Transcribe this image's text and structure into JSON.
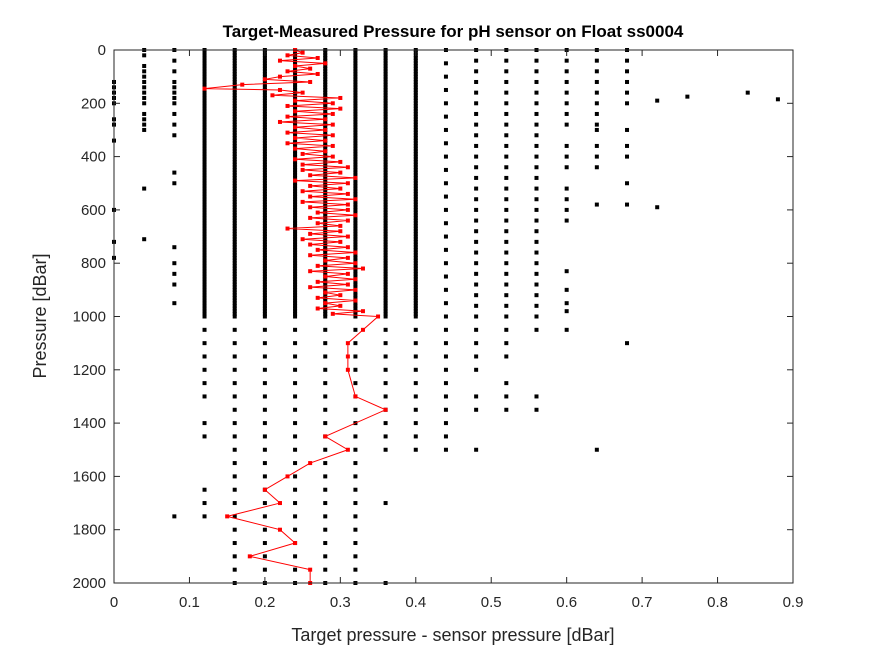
{
  "chart_data": {
    "type": "scatter",
    "title": "Target-Measured Pressure for pH sensor on Float ss0004",
    "xlabel": "Target pressure - sensor pressure [dBar]",
    "ylabel": "Pressure [dBar]",
    "xlim": [
      0,
      0.9
    ],
    "ylim": [
      0,
      2000
    ],
    "y_reversed": true,
    "grid": false,
    "x_ticks": [
      "0",
      "0.1",
      "0.2",
      "0.3",
      "0.4",
      "0.5",
      "0.6",
      "0.7",
      "0.8",
      "0.9"
    ],
    "y_ticks": [
      "0",
      "200",
      "400",
      "600",
      "800",
      "1000",
      "1200",
      "1400",
      "1600",
      "1800",
      "2000"
    ],
    "colors": {
      "scatter": "#000000",
      "line": "#ff0000"
    },
    "series": [
      {
        "type": "scatter",
        "dense_columns": [
          {
            "x": 0.12,
            "y_range": [
              0,
              1000
            ]
          },
          {
            "x": 0.16,
            "y_range": [
              0,
              1000
            ]
          },
          {
            "x": 0.2,
            "y_range": [
              0,
              1000
            ]
          },
          {
            "x": 0.24,
            "y_range": [
              0,
              1000
            ]
          },
          {
            "x": 0.28,
            "y_range": [
              0,
              1000
            ]
          },
          {
            "x": 0.32,
            "y_range": [
              0,
              1000
            ]
          },
          {
            "x": 0.36,
            "y_range": [
              0,
              1000
            ]
          },
          {
            "x": 0.4,
            "y_range": [
              0,
              1000
            ]
          }
        ],
        "sparse_columns": [
          {
            "x": 0,
            "y": [
              120,
              140,
              160,
              180,
              200,
              260,
              280,
              340,
              600,
              720,
              780
            ]
          },
          {
            "x": 0.04,
            "y": [
              0,
              20,
              60,
              80,
              100,
              120,
              140,
              160,
              180,
              200,
              240,
              260,
              280,
              300,
              520,
              710
            ]
          },
          {
            "x": 0.08,
            "y": [
              0,
              40,
              80,
              120,
              140,
              160,
              180,
              200,
              240,
              280,
              320,
              460,
              500,
              740,
              800,
              840,
              880,
              950,
              1750
            ]
          },
          {
            "x": 0.12,
            "y": [
              1050,
              1100,
              1150,
              1200,
              1250,
              1300,
              1400,
              1450,
              1650,
              1700,
              1750
            ]
          },
          {
            "x": 0.16,
            "y": [
              1050,
              1100,
              1150,
              1200,
              1250,
              1300,
              1350,
              1400,
              1450,
              1500,
              1550,
              1600,
              1650,
              1700,
              1750,
              1800,
              1850,
              1900,
              1950,
              2000
            ]
          },
          {
            "x": 0.2,
            "y": [
              1050,
              1100,
              1150,
              1200,
              1250,
              1300,
              1350,
              1400,
              1450,
              1500,
              1550,
              1600,
              1650,
              1700,
              1750,
              1800,
              1850,
              1900,
              1950,
              2000
            ]
          },
          {
            "x": 0.24,
            "y": [
              1050,
              1100,
              1150,
              1200,
              1250,
              1300,
              1350,
              1400,
              1450,
              1500,
              1550,
              1600,
              1650,
              1700,
              1750,
              1800,
              1850,
              1900,
              1950,
              2000
            ]
          },
          {
            "x": 0.28,
            "y": [
              1050,
              1100,
              1150,
              1200,
              1250,
              1300,
              1350,
              1400,
              1450,
              1500,
              1550,
              1600,
              1650,
              1700,
              1750,
              1800,
              1850,
              1900,
              1950,
              2000
            ]
          },
          {
            "x": 0.32,
            "y": [
              1050,
              1100,
              1150,
              1200,
              1250,
              1300,
              1350,
              1400,
              1450,
              1500,
              1550,
              1600,
              1650,
              1700,
              1750,
              1800,
              1850,
              1900,
              1950,
              2000
            ]
          },
          {
            "x": 0.36,
            "y": [
              1050,
              1100,
              1150,
              1200,
              1250,
              1300,
              1350,
              1400,
              1450,
              1500,
              1700,
              2000
            ]
          },
          {
            "x": 0.4,
            "y": [
              1050,
              1100,
              1150,
              1200,
              1250,
              1300,
              1350,
              1400,
              1450,
              1500
            ]
          },
          {
            "x": 0.44,
            "y": [
              0,
              50,
              100,
              150,
              200,
              250,
              300,
              350,
              400,
              450,
              500,
              550,
              600,
              650,
              700,
              750,
              800,
              850,
              900,
              950,
              1000,
              1050,
              1100,
              1150,
              1200,
              1250,
              1300,
              1350,
              1400,
              1450,
              1500
            ]
          },
          {
            "x": 0.48,
            "y": [
              0,
              40,
              80,
              120,
              160,
              200,
              240,
              280,
              320,
              360,
              400,
              440,
              480,
              520,
              560,
              600,
              640,
              680,
              720,
              760,
              800,
              840,
              880,
              920,
              960,
              1000,
              1050,
              1100,
              1150,
              1200,
              1300,
              1350,
              1500
            ]
          },
          {
            "x": 0.52,
            "y": [
              0,
              40,
              80,
              120,
              160,
              200,
              240,
              280,
              320,
              360,
              400,
              440,
              480,
              520,
              560,
              600,
              640,
              680,
              720,
              760,
              800,
              840,
              880,
              920,
              960,
              1000,
              1050,
              1100,
              1150,
              1250,
              1300,
              1350
            ]
          },
          {
            "x": 0.56,
            "y": [
              0,
              40,
              80,
              120,
              160,
              200,
              240,
              280,
              320,
              360,
              400,
              440,
              480,
              520,
              560,
              600,
              640,
              680,
              720,
              760,
              800,
              840,
              880,
              920,
              960,
              1000,
              1050,
              1300,
              1350
            ]
          },
          {
            "x": 0.6,
            "y": [
              0,
              40,
              80,
              120,
              160,
              200,
              240,
              280,
              360,
              400,
              440,
              520,
              560,
              600,
              640,
              830,
              900,
              950,
              980,
              1050
            ]
          },
          {
            "x": 0.64,
            "y": [
              0,
              40,
              80,
              120,
              160,
              200,
              240,
              280,
              300,
              360,
              400,
              440,
              580,
              1500
            ]
          },
          {
            "x": 0.68,
            "y": [
              0,
              40,
              80,
              120,
              160,
              200,
              300,
              360,
              400,
              500,
              580,
              1100
            ]
          },
          {
            "x": 0.72,
            "y": [
              190,
              590
            ]
          },
          {
            "x": 0.76,
            "y": [
              175
            ]
          },
          {
            "x": 0.84,
            "y": [
              160
            ]
          },
          {
            "x": 0.88,
            "y": [
              185
            ]
          }
        ]
      },
      {
        "type": "line",
        "profile": [
          [
            0.24,
            0
          ],
          [
            0.25,
            10
          ],
          [
            0.23,
            20
          ],
          [
            0.27,
            30
          ],
          [
            0.22,
            40
          ],
          [
            0.28,
            50
          ],
          [
            0.24,
            60
          ],
          [
            0.26,
            70
          ],
          [
            0.23,
            80
          ],
          [
            0.27,
            90
          ],
          [
            0.22,
            100
          ],
          [
            0.2,
            110
          ],
          [
            0.26,
            120
          ],
          [
            0.17,
            130
          ],
          [
            0.12,
            145
          ],
          [
            0.22,
            150
          ],
          [
            0.25,
            160
          ],
          [
            0.21,
            170
          ],
          [
            0.3,
            180
          ],
          [
            0.24,
            190
          ],
          [
            0.29,
            200
          ],
          [
            0.23,
            210
          ],
          [
            0.3,
            220
          ],
          [
            0.24,
            230
          ],
          [
            0.29,
            240
          ],
          [
            0.23,
            250
          ],
          [
            0.28,
            260
          ],
          [
            0.22,
            270
          ],
          [
            0.29,
            280
          ],
          [
            0.24,
            290
          ],
          [
            0.28,
            300
          ],
          [
            0.23,
            310
          ],
          [
            0.29,
            320
          ],
          [
            0.24,
            330
          ],
          [
            0.28,
            340
          ],
          [
            0.23,
            350
          ],
          [
            0.29,
            360
          ],
          [
            0.24,
            370
          ],
          [
            0.28,
            380
          ],
          [
            0.25,
            390
          ],
          [
            0.29,
            400
          ],
          [
            0.24,
            410
          ],
          [
            0.3,
            420
          ],
          [
            0.25,
            430
          ],
          [
            0.31,
            440
          ],
          [
            0.25,
            450
          ],
          [
            0.3,
            460
          ],
          [
            0.26,
            470
          ],
          [
            0.32,
            480
          ],
          [
            0.24,
            490
          ],
          [
            0.31,
            500
          ],
          [
            0.26,
            510
          ],
          [
            0.3,
            520
          ],
          [
            0.25,
            530
          ],
          [
            0.31,
            540
          ],
          [
            0.26,
            550
          ],
          [
            0.32,
            560
          ],
          [
            0.25,
            570
          ],
          [
            0.31,
            580
          ],
          [
            0.26,
            590
          ],
          [
            0.31,
            600
          ],
          [
            0.27,
            610
          ],
          [
            0.32,
            620
          ],
          [
            0.26,
            630
          ],
          [
            0.31,
            640
          ],
          [
            0.27,
            650
          ],
          [
            0.3,
            660
          ],
          [
            0.23,
            670
          ],
          [
            0.3,
            680
          ],
          [
            0.26,
            690
          ],
          [
            0.31,
            700
          ],
          [
            0.25,
            710
          ],
          [
            0.3,
            720
          ],
          [
            0.26,
            730
          ],
          [
            0.31,
            740
          ],
          [
            0.27,
            750
          ],
          [
            0.32,
            760
          ],
          [
            0.26,
            770
          ],
          [
            0.31,
            780
          ],
          [
            0.28,
            790
          ],
          [
            0.32,
            800
          ],
          [
            0.27,
            810
          ],
          [
            0.33,
            820
          ],
          [
            0.26,
            830
          ],
          [
            0.31,
            840
          ],
          [
            0.28,
            850
          ],
          [
            0.32,
            860
          ],
          [
            0.27,
            870
          ],
          [
            0.31,
            880
          ],
          [
            0.26,
            890
          ],
          [
            0.32,
            900
          ],
          [
            0.28,
            910
          ],
          [
            0.3,
            920
          ],
          [
            0.27,
            930
          ],
          [
            0.32,
            940
          ],
          [
            0.28,
            950
          ],
          [
            0.3,
            960
          ],
          [
            0.27,
            970
          ],
          [
            0.33,
            980
          ],
          [
            0.29,
            990
          ],
          [
            0.35,
            1000
          ],
          [
            0.33,
            1050
          ],
          [
            0.31,
            1100
          ],
          [
            0.31,
            1150
          ],
          [
            0.31,
            1200
          ],
          [
            0.32,
            1300
          ],
          [
            0.36,
            1350
          ],
          [
            0.28,
            1450
          ],
          [
            0.31,
            1500
          ],
          [
            0.26,
            1550
          ],
          [
            0.23,
            1600
          ],
          [
            0.2,
            1650
          ],
          [
            0.22,
            1700
          ],
          [
            0.15,
            1750
          ],
          [
            0.22,
            1800
          ],
          [
            0.24,
            1850
          ],
          [
            0.18,
            1900
          ],
          [
            0.26,
            1950
          ],
          [
            0.26,
            2000
          ]
        ]
      }
    ]
  }
}
